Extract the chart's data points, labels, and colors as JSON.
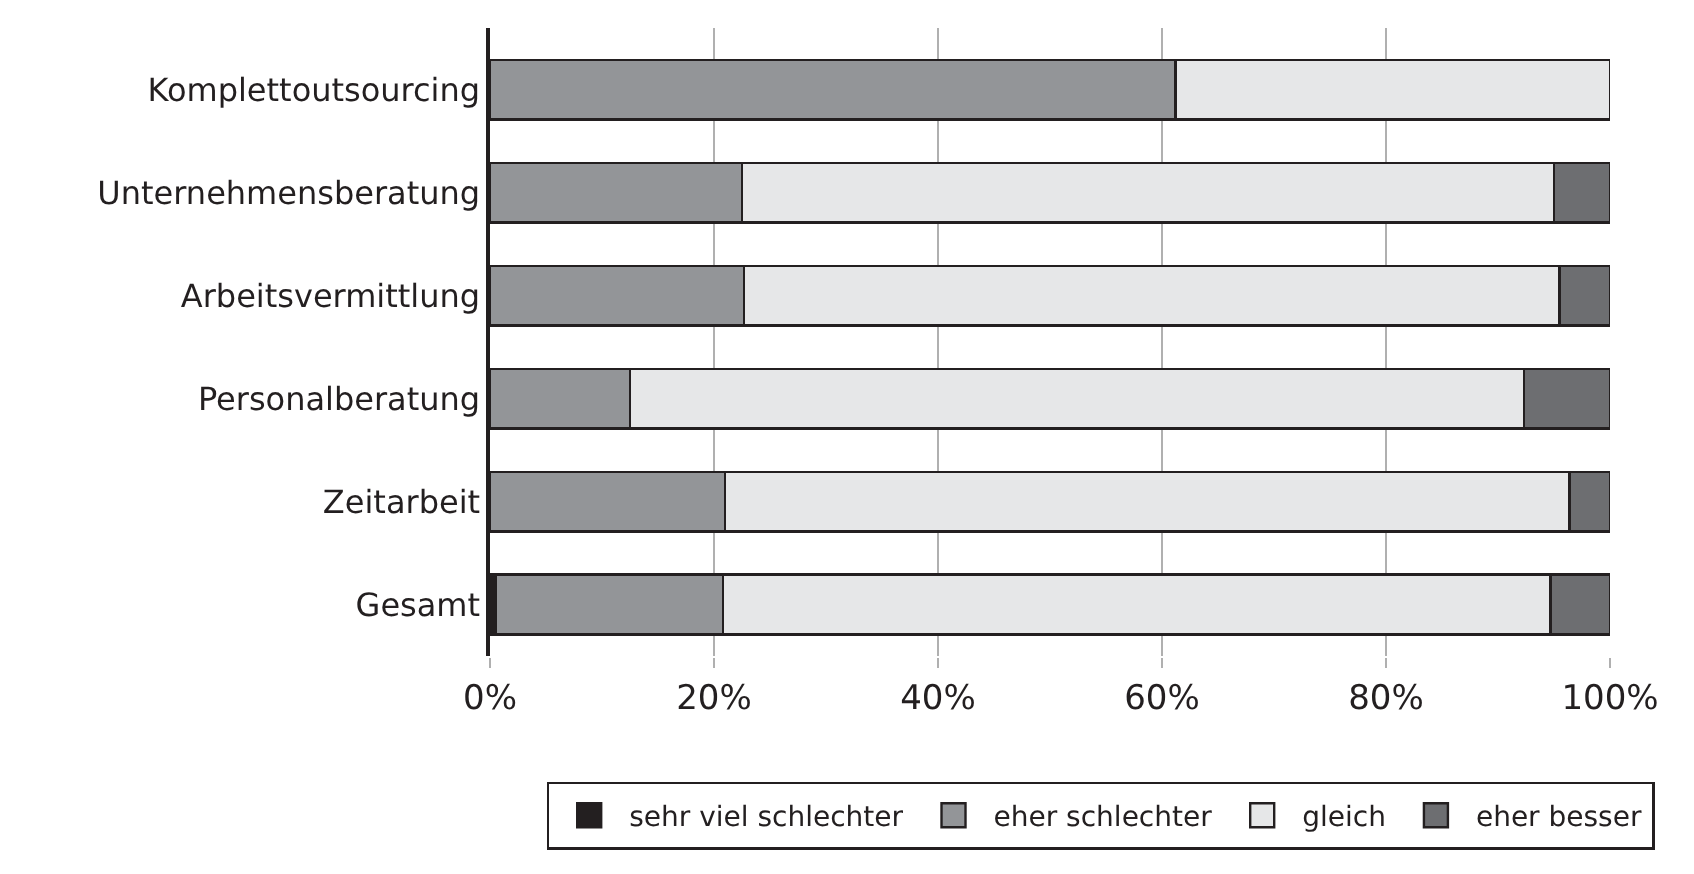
{
  "chart_data": {
    "type": "bar",
    "orientation": "horizontal",
    "stacked": true,
    "categories": [
      "Komplettoutsourcing",
      "Unternehmensberatung",
      "Arbeitsvermittlung",
      "Personalberatung",
      "Zeitarbeit",
      "Gesamt"
    ],
    "series": [
      {
        "name": "sehr viel schlechter",
        "color": "#231f20",
        "values": [
          null,
          null,
          null,
          null,
          null,
          0.5
        ]
      },
      {
        "name": "eher schlechter",
        "color": "#939598",
        "values": [
          61.2,
          22.5,
          22.7,
          12.5,
          21.0,
          20.3
        ]
      },
      {
        "name": "gleich",
        "color": "#e6e7e8",
        "values": [
          38.8,
          72.5,
          72.8,
          79.8,
          75.4,
          73.9
        ]
      },
      {
        "name": "eher besser",
        "color": "#6d6e71",
        "values": [
          null,
          5.0,
          4.5,
          7.7,
          3.6,
          5.3
        ]
      }
    ],
    "xlim": [
      0,
      100
    ],
    "xticks": [
      {
        "value": 0,
        "label": "0%"
      },
      {
        "value": 20,
        "label": "20%"
      },
      {
        "value": 40,
        "label": "40%"
      },
      {
        "value": 60,
        "label": "60%"
      },
      {
        "value": 80,
        "label": "80%"
      },
      {
        "value": 100,
        "label": "100%"
      }
    ],
    "grid": "x",
    "legend": "bottom"
  }
}
